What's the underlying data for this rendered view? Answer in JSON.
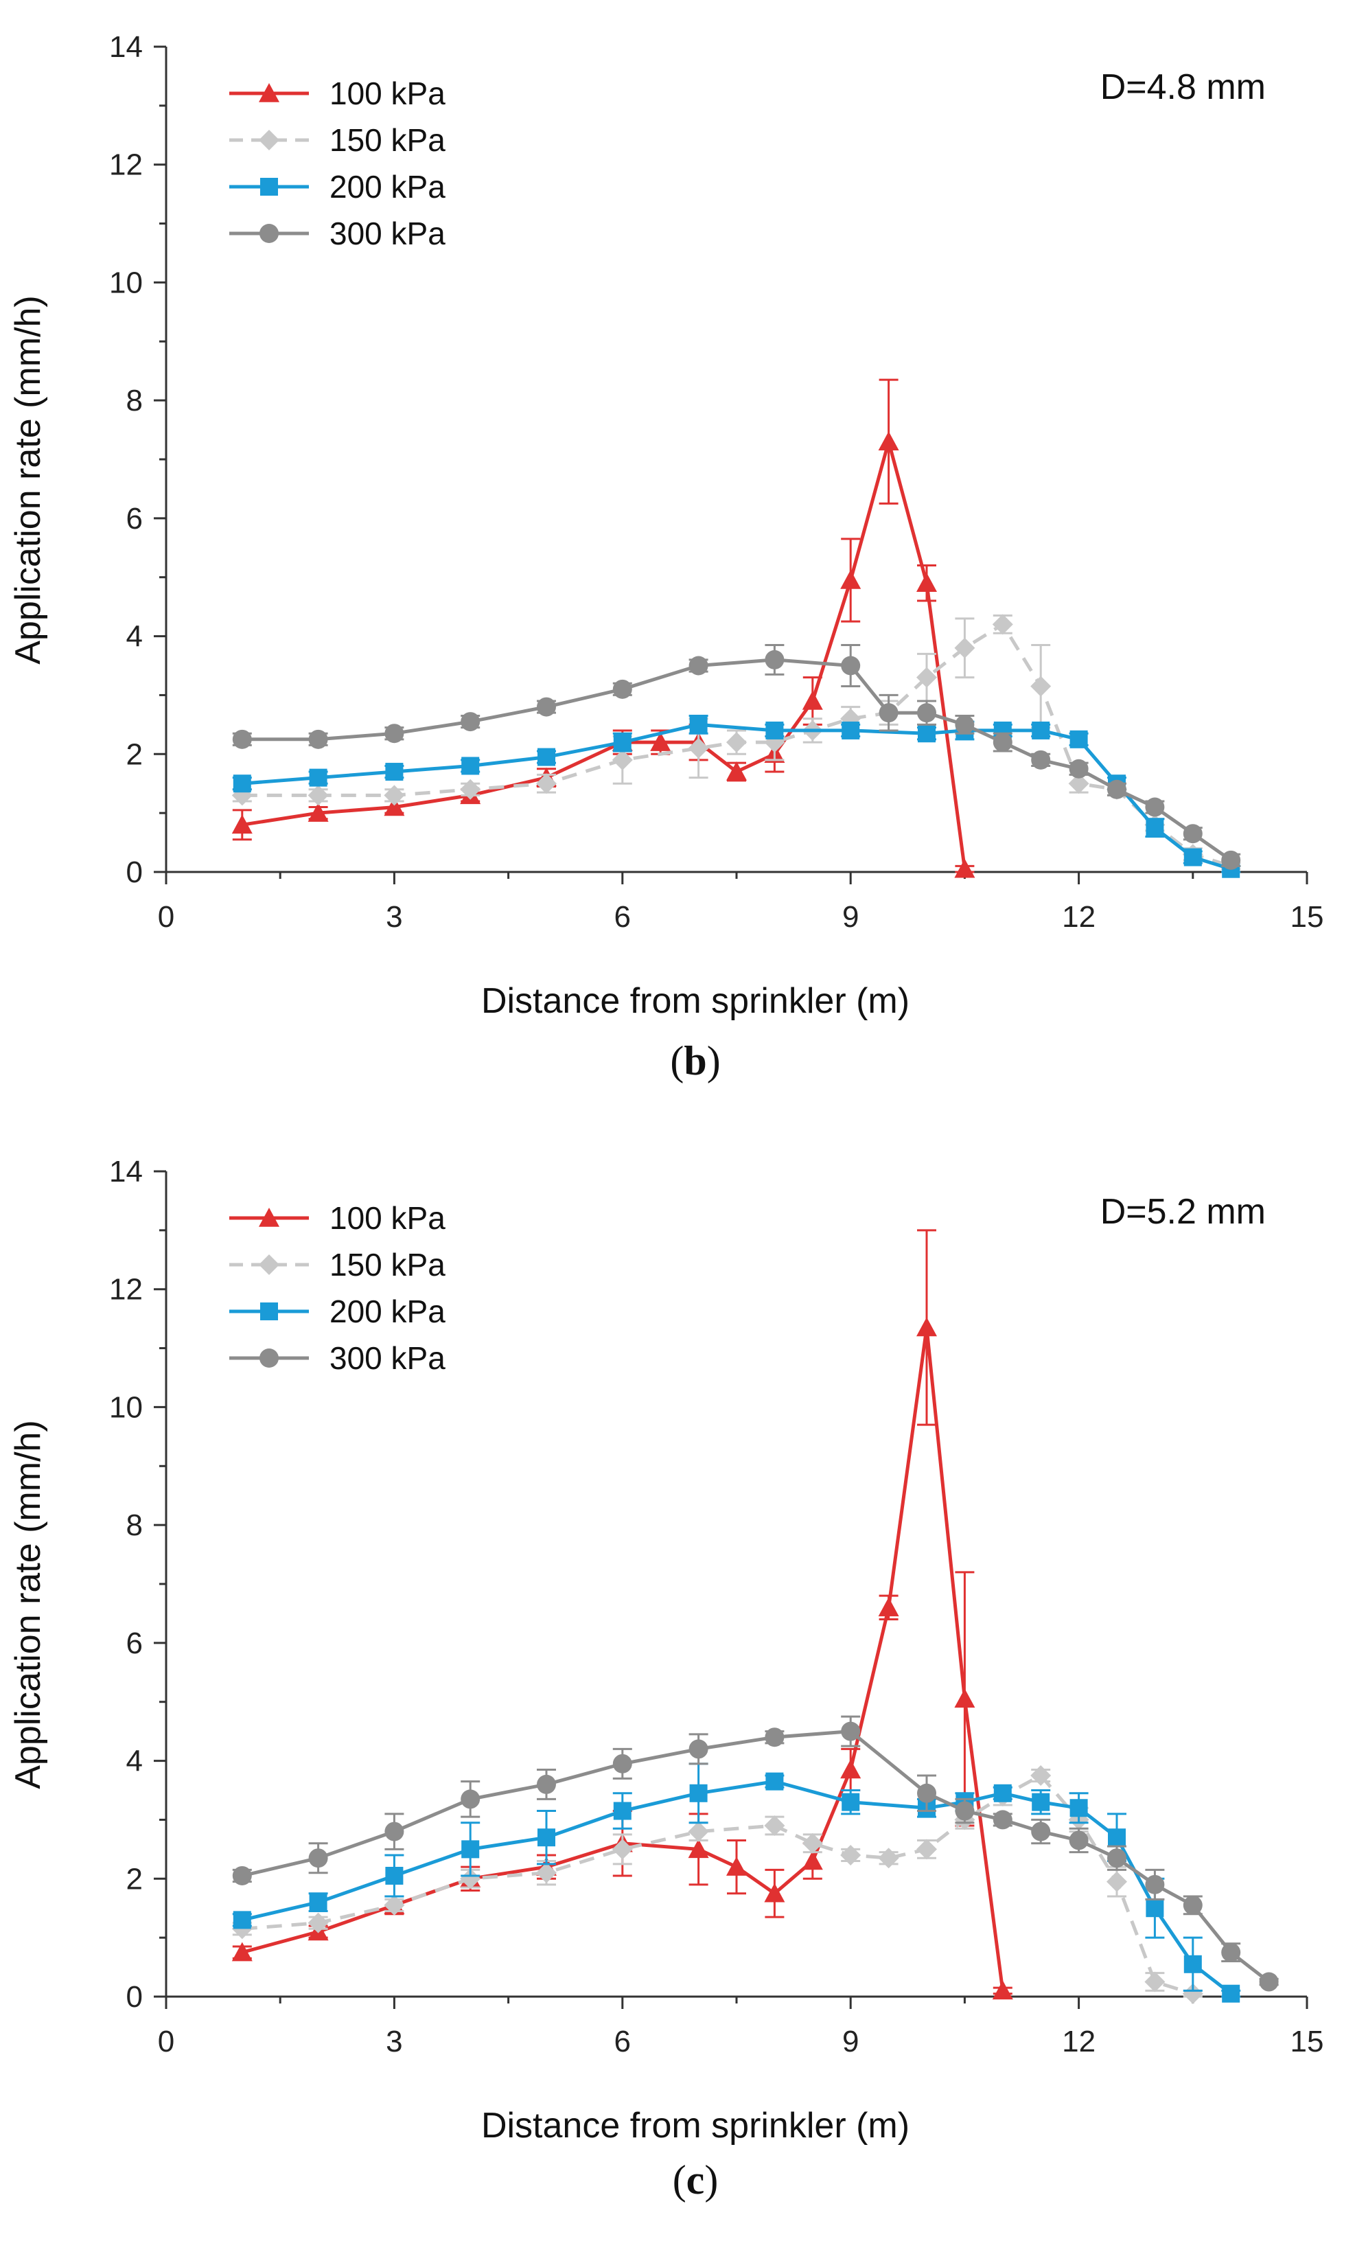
{
  "chart_data": [
    {
      "type": "line",
      "panel_label": "b",
      "annotation": "D=4.8 mm",
      "xlabel": "Distance from sprinkler (m)",
      "ylabel": "Application rate (mm/h)",
      "xlim": [
        0,
        15
      ],
      "ylim": [
        0,
        14
      ],
      "xticks": [
        0,
        3,
        6,
        9,
        12,
        15
      ],
      "yticks": [
        0,
        2,
        4,
        6,
        8,
        10,
        12,
        14
      ],
      "legend_position": "top-left",
      "series": [
        {
          "name": "100 kPa",
          "color": "#e03131",
          "marker": "triangle",
          "dash": "",
          "x": [
            1,
            2,
            3,
            4,
            5,
            6,
            6.5,
            7,
            7.5,
            8,
            8.5,
            9,
            9.5,
            10,
            10.5
          ],
          "y": [
            0.8,
            1.0,
            1.1,
            1.3,
            1.6,
            2.2,
            2.2,
            2.2,
            1.7,
            2.0,
            2.9,
            4.95,
            7.3,
            4.9,
            0.05
          ],
          "err": [
            0.25,
            0.1,
            0.1,
            0.1,
            0.15,
            0.2,
            0.2,
            0.3,
            0.15,
            0.3,
            0.4,
            0.7,
            1.05,
            0.3,
            0.05
          ]
        },
        {
          "name": "150 kPa",
          "color": "#c8c8c8",
          "marker": "diamond",
          "dash": "22 14",
          "x": [
            1,
            2,
            3,
            4,
            5,
            6,
            7,
            7.5,
            8,
            8.5,
            9,
            9.5,
            10,
            10.5,
            11,
            11.5,
            12,
            12.5,
            13,
            13.5,
            14
          ],
          "y": [
            1.3,
            1.3,
            1.3,
            1.4,
            1.5,
            1.9,
            2.1,
            2.2,
            2.2,
            2.4,
            2.6,
            2.7,
            3.3,
            3.8,
            4.2,
            3.15,
            1.5,
            1.4,
            0.8,
            0.3,
            0.1
          ],
          "err": [
            0.1,
            0.1,
            0.1,
            0.1,
            0.15,
            0.4,
            0.5,
            0.2,
            0.3,
            0.2,
            0.2,
            0.2,
            0.4,
            0.5,
            0.15,
            0.7,
            0.15,
            0.1,
            0.1,
            0.1,
            0.05
          ]
        },
        {
          "name": "200 kPa",
          "color": "#1a9bd7",
          "marker": "square",
          "dash": "",
          "x": [
            1,
            2,
            3,
            4,
            5,
            6,
            7,
            8,
            9,
            10,
            10.5,
            11,
            11.5,
            12,
            12.5,
            13,
            13.5,
            14
          ],
          "y": [
            1.5,
            1.6,
            1.7,
            1.8,
            1.95,
            2.2,
            2.5,
            2.4,
            2.4,
            2.35,
            2.4,
            2.4,
            2.4,
            2.25,
            1.5,
            0.75,
            0.25,
            0.05
          ],
          "err": [
            0.1,
            0.1,
            0.1,
            0.1,
            0.1,
            0.15,
            0.15,
            0.1,
            0.1,
            0.1,
            0.15,
            0.1,
            0.1,
            0.1,
            0.1,
            0.15,
            0.1,
            0.05
          ]
        },
        {
          "name": "300 kPa",
          "color": "#8c8c8c",
          "marker": "circle",
          "dash": "",
          "x": [
            1,
            2,
            3,
            4,
            5,
            6,
            7,
            8,
            9,
            9.5,
            10,
            10.5,
            11,
            11.5,
            12,
            12.5,
            13,
            13.5,
            14
          ],
          "y": [
            2.25,
            2.25,
            2.35,
            2.55,
            2.8,
            3.1,
            3.5,
            3.6,
            3.5,
            2.7,
            2.7,
            2.5,
            2.2,
            1.9,
            1.75,
            1.4,
            1.1,
            0.65,
            0.2
          ],
          "err": [
            0.1,
            0.1,
            0.1,
            0.1,
            0.1,
            0.1,
            0.1,
            0.25,
            0.35,
            0.3,
            0.2,
            0.15,
            0.15,
            0.1,
            0.1,
            0.1,
            0.1,
            0.1,
            0.1
          ]
        }
      ]
    },
    {
      "type": "line",
      "panel_label": "c",
      "annotation": "D=5.2 mm",
      "xlabel": "Distance from sprinkler (m)",
      "ylabel": "Application rate (mm/h)",
      "xlim": [
        0,
        15
      ],
      "ylim": [
        0,
        14
      ],
      "xticks": [
        0,
        3,
        6,
        9,
        12,
        15
      ],
      "yticks": [
        0,
        2,
        4,
        6,
        8,
        10,
        12,
        14
      ],
      "legend_position": "top-left",
      "series": [
        {
          "name": "100 kPa",
          "color": "#e03131",
          "marker": "triangle",
          "dash": "",
          "x": [
            1,
            2,
            3,
            4,
            5,
            6,
            7,
            7.5,
            8,
            8.5,
            9,
            9.5,
            10,
            10.5,
            11
          ],
          "y": [
            0.75,
            1.1,
            1.55,
            2.0,
            2.2,
            2.6,
            2.5,
            2.2,
            1.75,
            2.3,
            3.85,
            6.6,
            11.35,
            5.05,
            0.1
          ],
          "err": [
            0.1,
            0.1,
            0.15,
            0.2,
            0.2,
            0.55,
            0.6,
            0.45,
            0.4,
            0.3,
            0.35,
            0.2,
            1.65,
            2.15,
            0.05
          ]
        },
        {
          "name": "150 kPa",
          "color": "#c8c8c8",
          "marker": "diamond",
          "dash": "22 14",
          "x": [
            1,
            2,
            3,
            4,
            5,
            6,
            7,
            8,
            8.5,
            9,
            9.5,
            10,
            10.5,
            11,
            11.5,
            12,
            12.5,
            13,
            13.5
          ],
          "y": [
            1.15,
            1.25,
            1.55,
            2.0,
            2.1,
            2.5,
            2.8,
            2.9,
            2.6,
            2.4,
            2.35,
            2.5,
            3.0,
            3.4,
            3.75,
            3.0,
            1.95,
            0.25,
            0.05
          ],
          "err": [
            0.1,
            0.1,
            0.1,
            0.15,
            0.2,
            0.25,
            0.15,
            0.15,
            0.15,
            0.1,
            0.1,
            0.15,
            0.15,
            0.15,
            0.1,
            0.2,
            0.25,
            0.15,
            0.05
          ]
        },
        {
          "name": "200 kPa",
          "color": "#1a9bd7",
          "marker": "square",
          "dash": "",
          "x": [
            1,
            2,
            3,
            4,
            5,
            6,
            7,
            8,
            9,
            10,
            10.5,
            11,
            11.5,
            12,
            12.5,
            13,
            13.5,
            14
          ],
          "y": [
            1.3,
            1.6,
            2.05,
            2.5,
            2.7,
            3.15,
            3.45,
            3.65,
            3.3,
            3.2,
            3.3,
            3.45,
            3.3,
            3.2,
            2.7,
            1.5,
            0.55,
            0.05
          ],
          "err": [
            0.1,
            0.15,
            0.35,
            0.45,
            0.45,
            0.3,
            0.5,
            0.1,
            0.2,
            0.15,
            0.15,
            0.1,
            0.2,
            0.25,
            0.4,
            0.5,
            0.45,
            0.05
          ]
        },
        {
          "name": "300 kPa",
          "color": "#8c8c8c",
          "marker": "circle",
          "dash": "",
          "x": [
            1,
            2,
            3,
            4,
            5,
            6,
            7,
            8,
            9,
            10,
            10.5,
            11,
            11.5,
            12,
            12.5,
            13,
            13.5,
            14,
            14.5
          ],
          "y": [
            2.05,
            2.35,
            2.8,
            3.35,
            3.6,
            3.95,
            4.2,
            4.4,
            4.5,
            3.45,
            3.15,
            3.0,
            2.8,
            2.65,
            2.35,
            1.9,
            1.55,
            0.75,
            0.25
          ],
          "err": [
            0.1,
            0.25,
            0.3,
            0.3,
            0.25,
            0.25,
            0.25,
            0.1,
            0.25,
            0.3,
            0.2,
            0.1,
            0.2,
            0.2,
            0.2,
            0.25,
            0.15,
            0.15,
            0.05
          ]
        }
      ]
    }
  ]
}
